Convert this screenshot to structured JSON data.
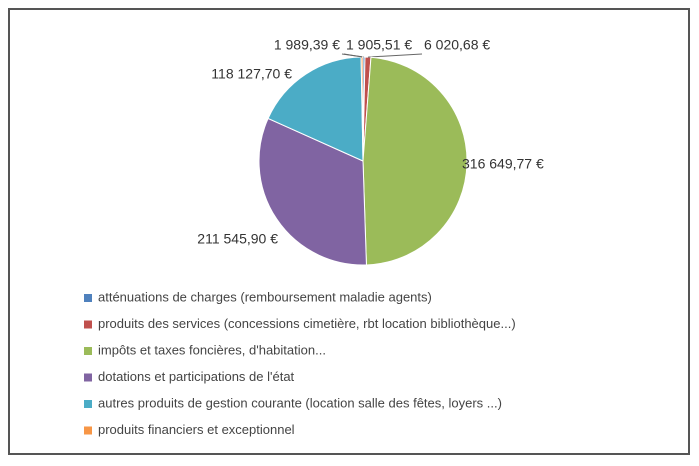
{
  "chart_data": {
    "type": "pie",
    "categories": [
      "atténuations de charges (remboursement maladie agents)",
      "produits des services (concessions cimetière, rbt location bibliothèque...)",
      "impôts et taxes foncières, d'habitation...",
      "dotations et participations de l'état",
      "autres produits de gestion courante (location salle des fêtes, loyers ...)",
      "produits financiers et exceptionnel"
    ],
    "values": [
      1989.39,
      6020.68,
      316649.77,
      211545.9,
      118127.7,
      1905.51
    ],
    "value_labels": [
      "1 989,39 €",
      "6 020,68 €",
      "316 649,77 €",
      "211 545,90 €",
      "118 127,70 €",
      "1 905,51 €"
    ],
    "colors": [
      "#4f81bd",
      "#c0504d",
      "#9bbb59",
      "#8064a2",
      "#4bacc6",
      "#f79646"
    ],
    "legend": "bottom"
  }
}
